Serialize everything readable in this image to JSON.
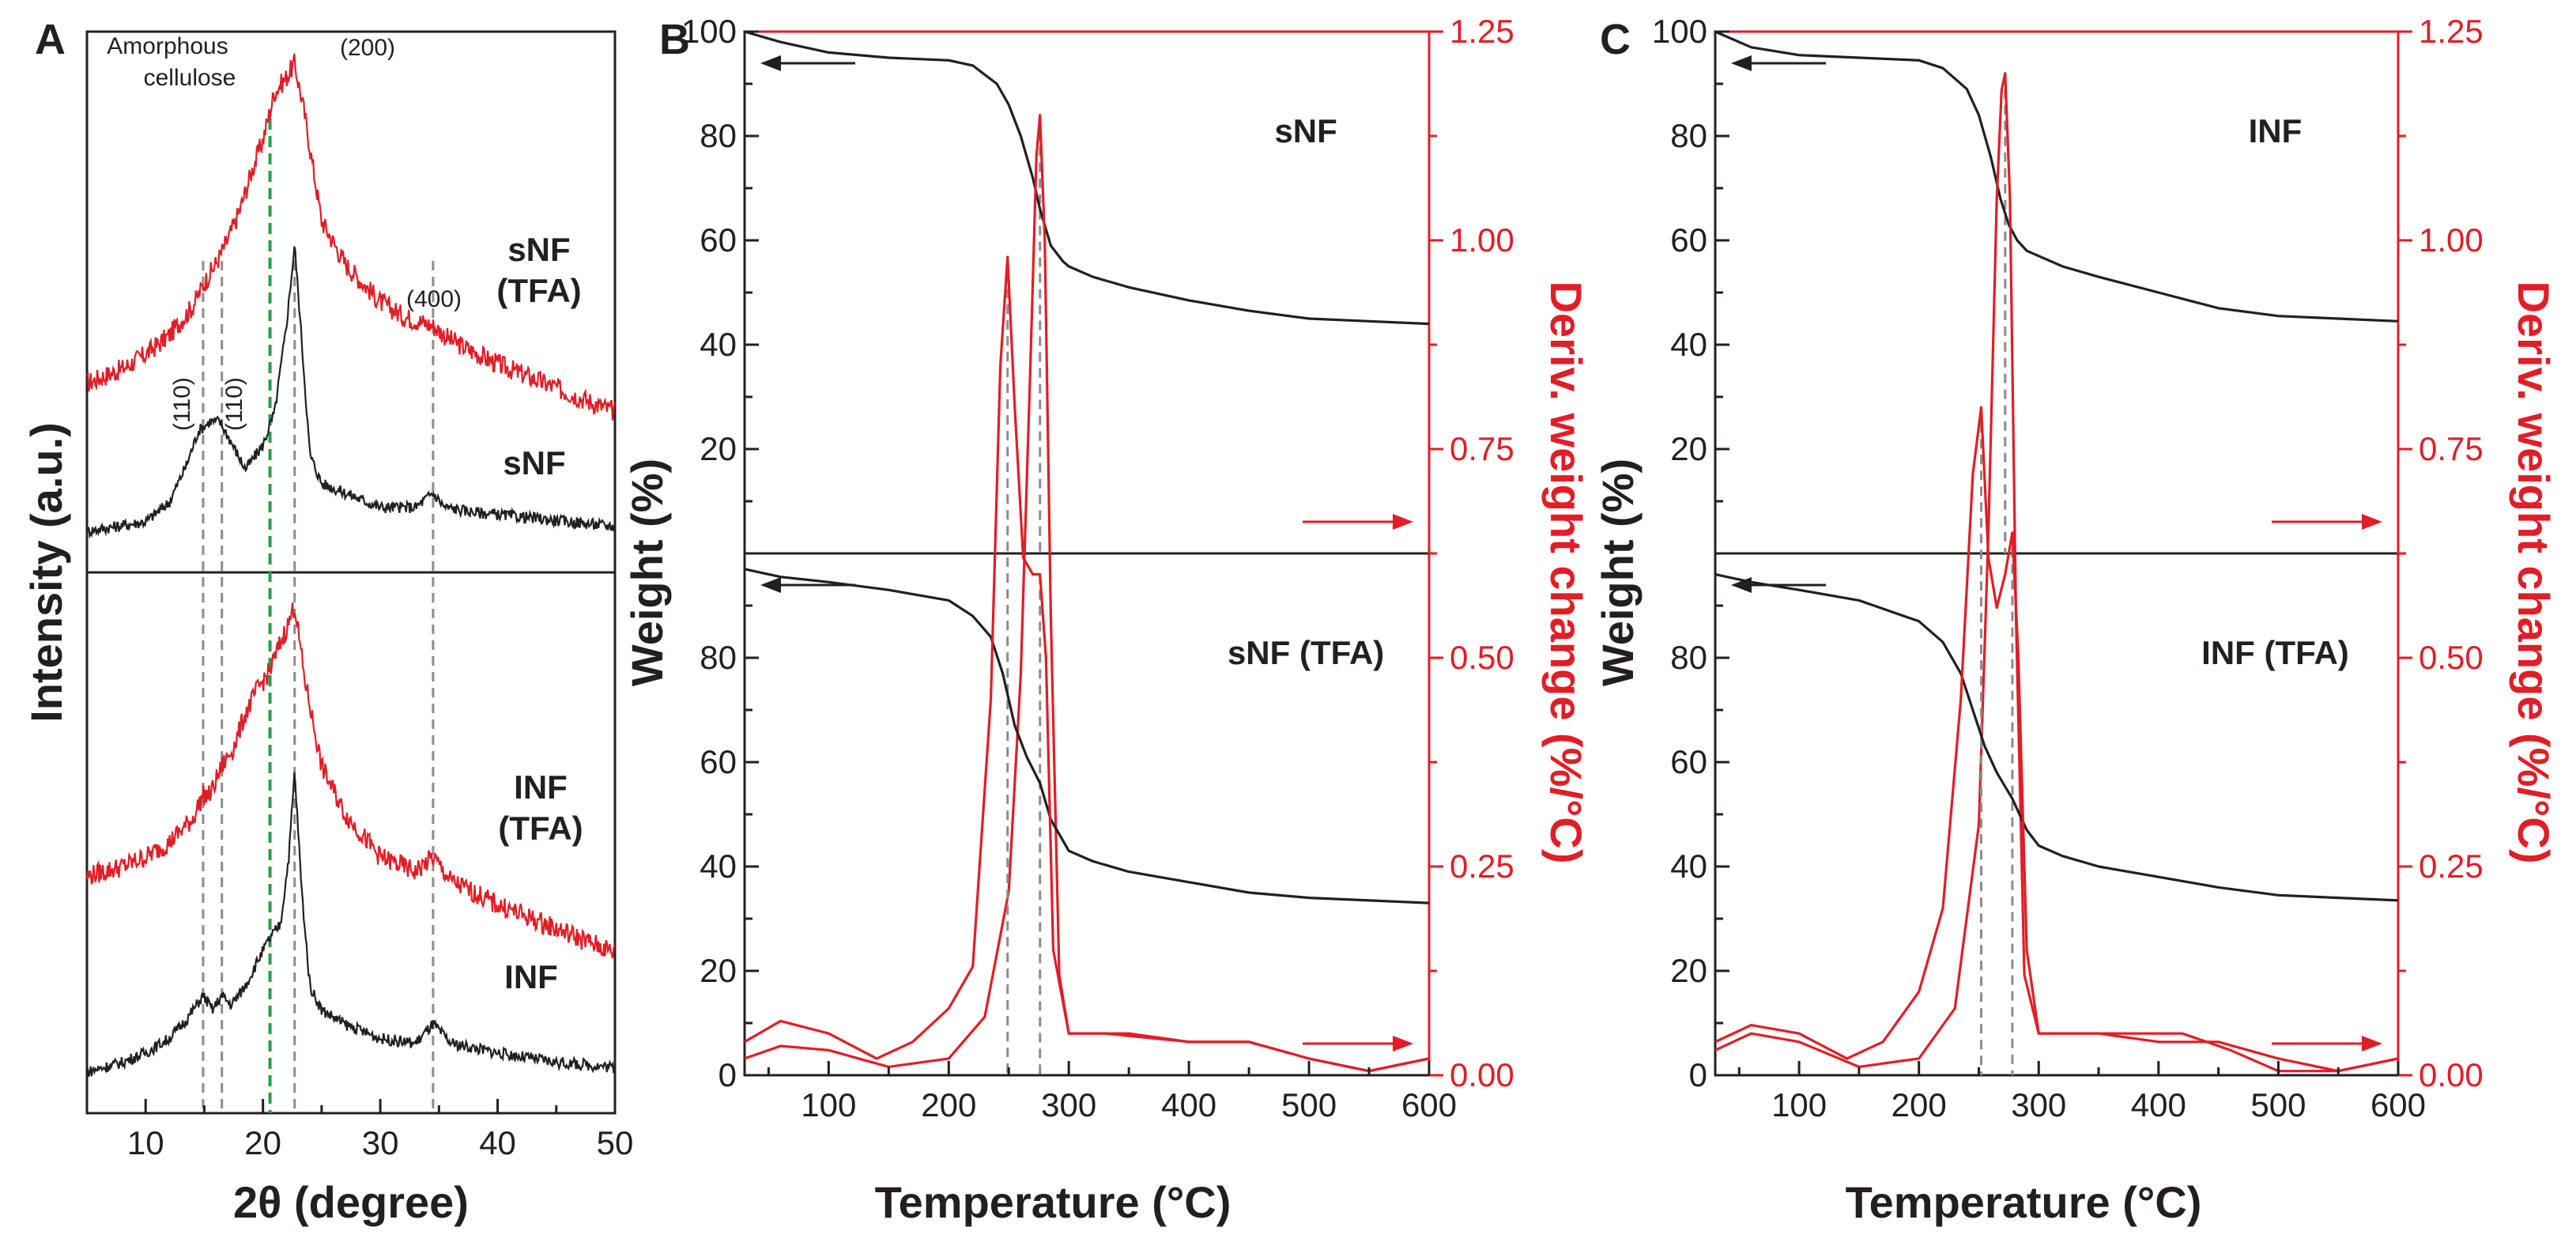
{
  "colors": {
    "black": "#231f20",
    "red": "#e21d26",
    "gray_guide": "#8c8c8c",
    "green_guide": "#1fa24a"
  },
  "chart_data": [
    {
      "panel": "A",
      "type": "line",
      "xlabel": "2θ (degree)",
      "ylabel": "Intensity (a.u.)",
      "xlim": [
        5,
        50
      ],
      "xticks": [
        10,
        20,
        30,
        40,
        50
      ],
      "stacked": true,
      "annotations": {
        "amorphous": "Amorphous cellulose",
        "p200": "(200)",
        "p400": "(400)",
        "p110a": "(110)",
        "p110b": "(110)"
      },
      "gray_guides_2theta": [
        14.9,
        16.5,
        22.7,
        34.5
      ],
      "green_guide_2theta": 20.6,
      "series": [
        {
          "name": "sNF (TFA)",
          "label": "sNF\n(TFA)",
          "label_lines": [
            "sNF",
            "(TFA)"
          ],
          "color": "red",
          "subplot": "top",
          "x": [
            5,
            8,
            10,
            12,
            14,
            15,
            16,
            17,
            18,
            19,
            20,
            21,
            22,
            22.7,
            23.5,
            25,
            27,
            30,
            32,
            34.5,
            36,
            40,
            45,
            50
          ],
          "y": [
            0.33,
            0.36,
            0.39,
            0.43,
            0.49,
            0.54,
            0.58,
            0.63,
            0.69,
            0.77,
            0.84,
            0.94,
            0.97,
            1.0,
            0.9,
            0.67,
            0.58,
            0.5,
            0.47,
            0.45,
            0.42,
            0.37,
            0.32,
            0.27
          ]
        },
        {
          "name": "sNF",
          "label": "sNF",
          "label_lines": [
            "sNF"
          ],
          "color": "black",
          "subplot": "top",
          "x": [
            5,
            10,
            12,
            13.5,
            14.5,
            15.5,
            16.3,
            17,
            18.5,
            20,
            21,
            22,
            22.7,
            23.3,
            24,
            25,
            26,
            28,
            30,
            33,
            34.5,
            35.5,
            38,
            42,
            46,
            50
          ],
          "y": [
            0.02,
            0.04,
            0.08,
            0.16,
            0.23,
            0.25,
            0.25,
            0.22,
            0.15,
            0.2,
            0.27,
            0.45,
            0.62,
            0.42,
            0.18,
            0.12,
            0.11,
            0.09,
            0.07,
            0.07,
            0.1,
            0.07,
            0.06,
            0.05,
            0.04,
            0.03
          ]
        },
        {
          "name": "INF (TFA)",
          "label": "INF\n(TFA)",
          "label_lines": [
            "INF",
            "(TFA)"
          ],
          "color": "red",
          "subplot": "bottom",
          "x": [
            5,
            8,
            10,
            12,
            14,
            14.9,
            15.5,
            16.5,
            17.5,
            18.5,
            19.5,
            20.6,
            21.5,
            22.2,
            22.7,
            23.5,
            25,
            27,
            30,
            33,
            34.5,
            36,
            40,
            45,
            50
          ],
          "y": [
            0.43,
            0.45,
            0.47,
            0.5,
            0.55,
            0.6,
            0.6,
            0.66,
            0.7,
            0.77,
            0.82,
            0.86,
            0.92,
            0.96,
            1.0,
            0.85,
            0.66,
            0.56,
            0.47,
            0.44,
            0.47,
            0.42,
            0.37,
            0.32,
            0.27
          ]
        },
        {
          "name": "INF",
          "label": "INF",
          "label_lines": [
            "INF"
          ],
          "color": "black",
          "subplot": "bottom",
          "x": [
            5,
            8,
            10,
            12,
            13.5,
            14.9,
            15.7,
            16.5,
            17.3,
            18.5,
            19.7,
            20.6,
            21.5,
            22.2,
            22.7,
            23.3,
            24,
            25,
            27,
            30,
            33,
            34.5,
            36,
            40,
            45,
            50
          ],
          "y": [
            0.02,
            0.04,
            0.06,
            0.09,
            0.13,
            0.18,
            0.15,
            0.18,
            0.16,
            0.2,
            0.26,
            0.3,
            0.33,
            0.47,
            0.65,
            0.4,
            0.2,
            0.15,
            0.12,
            0.09,
            0.08,
            0.12,
            0.08,
            0.06,
            0.04,
            0.03
          ]
        }
      ]
    },
    {
      "panel": "B",
      "type": "line",
      "xlabel": "Temperature (°C)",
      "ylabel_left": "Weight (%)",
      "ylabel_right": "Deriv. weight change (%/°C)",
      "xlim": [
        30,
        600
      ],
      "xticks": [
        100,
        200,
        300,
        400,
        500,
        600
      ],
      "ylim_left_top": [
        0,
        100
      ],
      "ylim_left_bottom": [
        0,
        100
      ],
      "yticks_left_top": [
        20,
        40,
        60,
        80,
        100
      ],
      "yticks_left_bottom": [
        0,
        20,
        40,
        60,
        80
      ],
      "ylim_right": [
        0,
        1.25
      ],
      "yticks_right": [
        "0.00",
        "0.25",
        "0.50",
        "0.75",
        "1.00",
        "1.25"
      ],
      "subplots": [
        {
          "label": "sNF",
          "peak_guides_C": [
            276
          ],
          "weight": {
            "x": [
              30,
              60,
              100,
              150,
              200,
              220,
              240,
              250,
              260,
              270,
              276,
              285,
              295,
              300,
              320,
              350,
              400,
              450,
              500,
              550,
              600
            ],
            "y": [
              100,
              98,
              96,
              95,
              94.5,
              93.5,
              90,
              86,
              80,
              72,
              66,
              59,
              56,
              55,
              53,
              51,
              48.5,
              46.5,
              45,
              44.5,
              44
            ]
          },
          "deriv": {
            "x": [
              30,
              60,
              100,
              150,
              200,
              230,
              250,
              260,
              268,
              273,
              276,
              280,
              285,
              292,
              300,
              330,
              400,
              450,
              500,
              550,
              600
            ],
            "y": [
              0.02,
              0.035,
              0.03,
              0.01,
              0.02,
              0.07,
              0.22,
              0.48,
              0.85,
              1.1,
              1.15,
              1.0,
              0.55,
              0.12,
              0.05,
              0.05,
              0.04,
              0.04,
              0.02,
              0.005,
              0.02
            ]
          }
        },
        {
          "label": "sNF (TFA)",
          "peak_guides_C": [
            249,
            276
          ],
          "weight": {
            "x": [
              30,
              60,
              100,
              150,
              200,
              220,
              235,
              245,
              255,
              265,
              276,
              285,
              300,
              320,
              350,
              400,
              450,
              500,
              550,
              600
            ],
            "y": [
              97,
              95.5,
              94.5,
              93,
              91,
              88,
              84,
              77,
              67,
              61,
              56,
              49,
              43,
              41,
              39,
              37,
              35,
              34,
              33.5,
              33
            ]
          },
          "deriv": {
            "x": [
              30,
              60,
              100,
              140,
              170,
              200,
              220,
              235,
              243,
              249,
              255,
              262,
              270,
              276,
              281,
              287,
              300,
              350,
              400,
              450,
              500,
              550,
              600
            ],
            "y": [
              0.04,
              0.065,
              0.05,
              0.02,
              0.04,
              0.08,
              0.13,
              0.45,
              0.85,
              0.98,
              0.8,
              0.62,
              0.6,
              0.6,
              0.5,
              0.15,
              0.05,
              0.05,
              0.04,
              0.04,
              0.02,
              0.005,
              0.02
            ]
          }
        }
      ]
    },
    {
      "panel": "C",
      "type": "line",
      "xlabel": "Temperature (°C)",
      "ylabel_left": "Weight (%)",
      "ylabel_right": "Deriv. weight change (%/°C)",
      "xlim": [
        30,
        600
      ],
      "xticks": [
        100,
        200,
        300,
        400,
        500,
        600
      ],
      "ylim_left_top": [
        0,
        100
      ],
      "ylim_left_bottom": [
        0,
        100
      ],
      "yticks_left_top": [
        20,
        40,
        60,
        80,
        100
      ],
      "yticks_left_bottom": [
        0,
        20,
        40,
        60,
        80
      ],
      "ylim_right": [
        0,
        1.25
      ],
      "yticks_right": [
        "0.00",
        "0.25",
        "0.50",
        "0.75",
        "1.00",
        "1.25"
      ],
      "subplots": [
        {
          "label": "INF",
          "peak_guides_C": [
            272
          ],
          "weight": {
            "x": [
              30,
              60,
              100,
              150,
              200,
              220,
              240,
              250,
              260,
              268,
              275,
              282,
              290,
              300,
              320,
              350,
              400,
              450,
              500,
              550,
              600
            ],
            "y": [
              100,
              97,
              95.5,
              95,
              94.5,
              93,
              89,
              84,
              76,
              68,
              63,
              60,
              58,
              57,
              55,
              53,
              50,
              47,
              45.5,
              45,
              44.5
            ]
          },
          "deriv": {
            "x": [
              30,
              60,
              100,
              150,
              200,
              230,
              250,
              258,
              265,
              269,
              272,
              276,
              281,
              288,
              300,
              350,
              420,
              460,
              500,
              550,
              600
            ],
            "y": [
              0.03,
              0.05,
              0.04,
              0.01,
              0.02,
              0.08,
              0.3,
              0.65,
              1.05,
              1.18,
              1.2,
              1.05,
              0.55,
              0.12,
              0.05,
              0.05,
              0.05,
              0.03,
              0.005,
              0.005,
              0.02
            ]
          }
        },
        {
          "label": "INF (TFA)",
          "peak_guides_C": [
            252,
            278
          ],
          "weight": {
            "x": [
              30,
              60,
              100,
              150,
              200,
              220,
              235,
              245,
              255,
              265,
              278,
              290,
              300,
              320,
              350,
              400,
              450,
              500,
              550,
              600
            ],
            "y": [
              96,
              94.5,
              93,
              91,
              87,
              83,
              77,
              70,
              63,
              58,
              53,
              47,
              44,
              42,
              40,
              38,
              36,
              34.5,
              34,
              33.5
            ]
          },
          "deriv": {
            "x": [
              30,
              60,
              100,
              140,
              170,
              200,
              220,
              235,
              245,
              252,
              258,
              265,
              272,
              278,
              283,
              290,
              300,
              350,
              400,
              450,
              500,
              550,
              600
            ],
            "y": [
              0.04,
              0.06,
              0.05,
              0.02,
              0.04,
              0.1,
              0.2,
              0.45,
              0.72,
              0.8,
              0.62,
              0.56,
              0.6,
              0.65,
              0.5,
              0.15,
              0.05,
              0.05,
              0.04,
              0.04,
              0.02,
              0.005,
              0.02
            ]
          }
        }
      ]
    }
  ]
}
